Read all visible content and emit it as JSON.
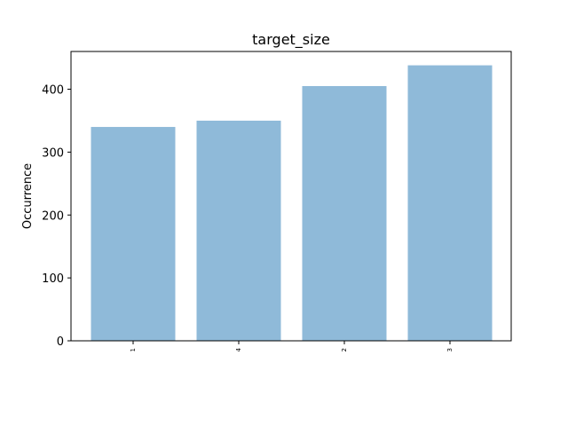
{
  "chart_data": {
    "type": "bar",
    "title": "target_size",
    "xlabel": "",
    "ylabel": "Occurrence",
    "categories": [
      "1",
      "4",
      "2",
      "3"
    ],
    "values": [
      340,
      350,
      405,
      438
    ],
    "ylim": [
      0,
      460
    ],
    "yticks": [
      0,
      100,
      200,
      300,
      400
    ],
    "bar_color": "#8fbad9",
    "grid": false,
    "legend": "none"
  }
}
